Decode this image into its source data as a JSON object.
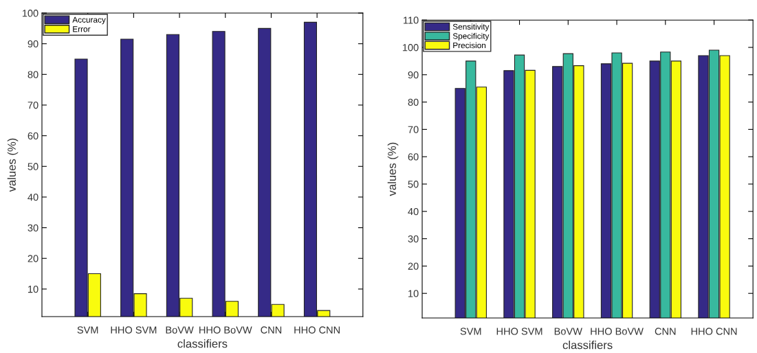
{
  "chart_data": [
    {
      "type": "bar",
      "xlabel": "classifiers",
      "ylabel": "values (%)",
      "categories": [
        "SVM",
        "HHO SVM",
        "BoVW",
        "HHO BoVW",
        "CNN",
        "HHO CNN"
      ],
      "series": [
        {
          "name": "Accuracy",
          "color": "#352a87",
          "values": [
            85,
            91.5,
            93,
            94,
            95,
            97
          ]
        },
        {
          "name": "Error",
          "color": "#f9fb0e",
          "values": [
            15,
            8.5,
            7,
            6,
            5,
            3
          ]
        }
      ],
      "ylim": [
        1,
        100
      ],
      "yticks": [
        10,
        20,
        30,
        40,
        50,
        60,
        70,
        80,
        90,
        100
      ],
      "legend": "top left",
      "grid": false
    },
    {
      "type": "bar",
      "xlabel": "classifiers",
      "ylabel": "values (%)",
      "categories": [
        "SVM",
        "HHO SVM",
        "BoVW",
        "HHO BoVW",
        "CNN",
        "HHO CNN"
      ],
      "series": [
        {
          "name": "Sensitivity",
          "color": "#352a87",
          "values": [
            85,
            91.5,
            93,
            94,
            95,
            97
          ]
        },
        {
          "name": "Specificity",
          "color": "#38b99e",
          "values": [
            95,
            97.2,
            97.7,
            98,
            98.3,
            99
          ]
        },
        {
          "name": "Precision",
          "color": "#f9fb0e",
          "values": [
            85.5,
            91.6,
            93.3,
            94.2,
            95,
            97
          ]
        }
      ],
      "ylim": [
        1,
        110
      ],
      "yticks": [
        10,
        20,
        30,
        40,
        50,
        60,
        70,
        80,
        90,
        100,
        110
      ],
      "legend": "top left",
      "grid": false
    }
  ]
}
